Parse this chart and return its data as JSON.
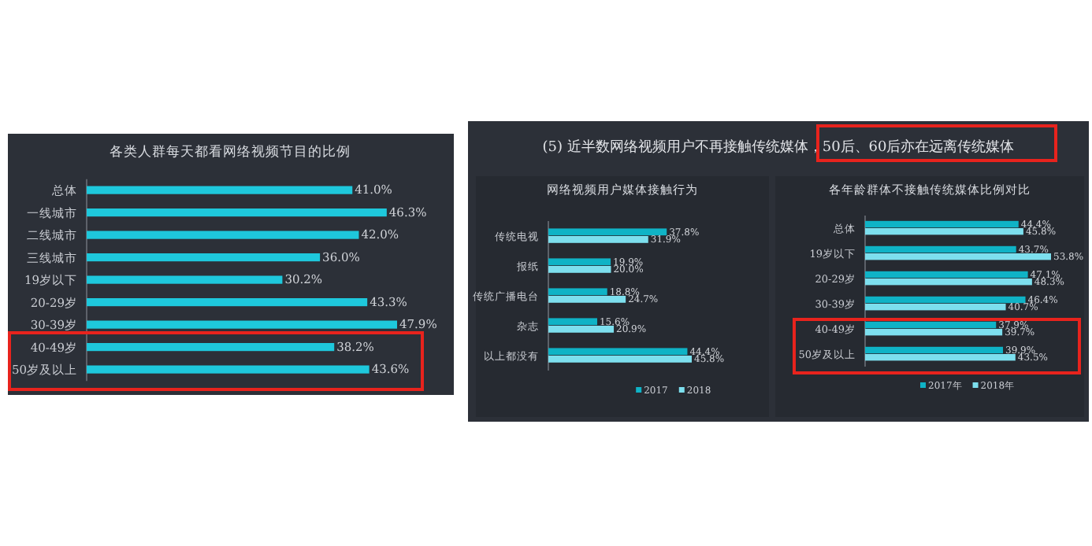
{
  "chart_data": [
    {
      "type": "bar",
      "orientation": "horizontal",
      "title": "各类人群每天都看网络视频节目的比例",
      "categories": [
        "总体",
        "一线城市",
        "二线城市",
        "三线城市",
        "19岁以下",
        "20-29岁",
        "30-39岁",
        "40-49岁",
        "50岁及以上"
      ],
      "series": [
        {
          "color": "#1ec8dc",
          "values": [
            41.0,
            46.3,
            42.0,
            36.0,
            30.2,
            43.3,
            47.9,
            38.2,
            43.6
          ],
          "value_labels": [
            "41.0%",
            "46.3%",
            "42.0%",
            "36.0%",
            "30.2%",
            "43.3%",
            "47.9%",
            "38.2%",
            "43.6%"
          ]
        }
      ],
      "legend": false
    },
    {
      "type": "bar",
      "orientation": "horizontal",
      "title": "网络视频用户媒体接触行为",
      "annotations": [
        "(5) 近半数网络视频用户不再接触传统媒体，50后、60后亦在远离传统媒体"
      ],
      "categories": [
        "传统电视",
        "报纸",
        "传统广播电台",
        "杂志",
        "以上都没有"
      ],
      "series": [
        {
          "name": "2017",
          "color": "#0fb3c6",
          "values": [
            37.8,
            19.9,
            18.8,
            15.6,
            44.4
          ],
          "value_labels": [
            "37.8%",
            "19.9%",
            "18.8%",
            "15.6%",
            "44.4%"
          ]
        },
        {
          "name": "2018",
          "color": "#7ddfee",
          "values": [
            31.9,
            20.0,
            24.7,
            20.9,
            45.8
          ],
          "value_labels": [
            "31.9%",
            "20.0%",
            "24.7%",
            "20.9%",
            "45.8%"
          ]
        }
      ],
      "legend": "bottom right"
    },
    {
      "type": "bar",
      "orientation": "horizontal",
      "title": "各年龄群体不接触传统媒体比例对比",
      "categories": [
        "总体",
        "19岁以下",
        "20-29岁",
        "30-39岁",
        "40-49岁",
        "50岁及以上"
      ],
      "series": [
        {
          "name": "2017年",
          "color": "#0fb3c6",
          "values": [
            44.4,
            43.7,
            47.1,
            46.4,
            37.9,
            39.9
          ],
          "value_labels": [
            "44.4%",
            "43.7%",
            "47.1%",
            "46.4%",
            "37.9%",
            "39.9%"
          ]
        },
        {
          "name": "2018年",
          "color": "#7ddfee",
          "values": [
            45.8,
            53.8,
            48.3,
            40.7,
            39.7,
            43.5
          ],
          "value_labels": [
            "45.8%",
            "53.8%",
            "48.3%",
            "40.7%",
            "39.7%",
            "43.5%"
          ]
        }
      ],
      "legend": "bottom right"
    }
  ]
}
